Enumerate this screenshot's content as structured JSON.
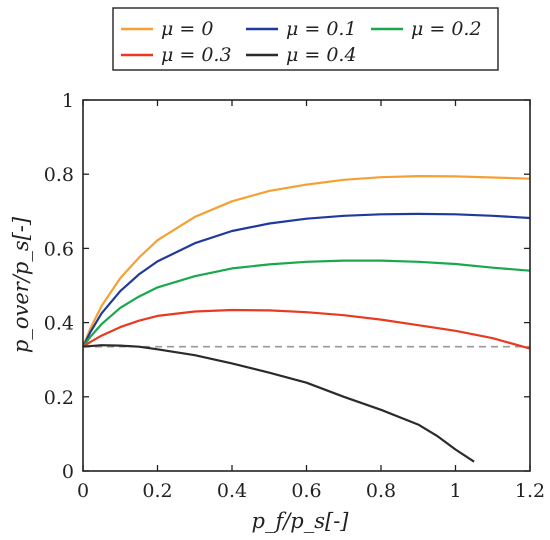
{
  "chart_data": {
    "type": "line",
    "xlabel": "p_f/p_s[-]",
    "ylabel": "p_over/p_s[-]",
    "xlim": [
      0,
      1.2
    ],
    "ylim": [
      0,
      1
    ],
    "x_ticks": [
      "0",
      "0.2",
      "0.4",
      "0.6",
      "0.8",
      "1",
      "1.2"
    ],
    "y_ticks": [
      "0",
      "0.2",
      "0.4",
      "0.6",
      "0.8",
      "1"
    ],
    "grid": false,
    "legend": "top-outside",
    "series": [
      {
        "name": "μ = 0",
        "color": "#f5a033",
        "points": [
          [
            0,
            0.335
          ],
          [
            0.02,
            0.385
          ],
          [
            0.05,
            0.445
          ],
          [
            0.1,
            0.52
          ],
          [
            0.15,
            0.575
          ],
          [
            0.2,
            0.622
          ],
          [
            0.3,
            0.685
          ],
          [
            0.4,
            0.727
          ],
          [
            0.5,
            0.755
          ],
          [
            0.6,
            0.772
          ],
          [
            0.7,
            0.785
          ],
          [
            0.8,
            0.792
          ],
          [
            0.9,
            0.795
          ],
          [
            1.0,
            0.794
          ],
          [
            1.1,
            0.791
          ],
          [
            1.2,
            0.788
          ]
        ]
      },
      {
        "name": "μ = 0.1",
        "color": "#1f3a9c",
        "points": [
          [
            0,
            0.335
          ],
          [
            0.02,
            0.375
          ],
          [
            0.05,
            0.425
          ],
          [
            0.1,
            0.485
          ],
          [
            0.15,
            0.53
          ],
          [
            0.2,
            0.565
          ],
          [
            0.3,
            0.614
          ],
          [
            0.4,
            0.647
          ],
          [
            0.5,
            0.667
          ],
          [
            0.6,
            0.68
          ],
          [
            0.7,
            0.688
          ],
          [
            0.8,
            0.692
          ],
          [
            0.9,
            0.693
          ],
          [
            1.0,
            0.692
          ],
          [
            1.1,
            0.688
          ],
          [
            1.2,
            0.682
          ]
        ]
      },
      {
        "name": "μ = 0.2",
        "color": "#1aa84d",
        "points": [
          [
            0,
            0.335
          ],
          [
            0.02,
            0.362
          ],
          [
            0.05,
            0.396
          ],
          [
            0.1,
            0.44
          ],
          [
            0.15,
            0.47
          ],
          [
            0.2,
            0.495
          ],
          [
            0.3,
            0.525
          ],
          [
            0.4,
            0.546
          ],
          [
            0.5,
            0.557
          ],
          [
            0.6,
            0.564
          ],
          [
            0.7,
            0.567
          ],
          [
            0.8,
            0.567
          ],
          [
            0.9,
            0.564
          ],
          [
            1.0,
            0.558
          ],
          [
            1.1,
            0.548
          ],
          [
            1.2,
            0.54
          ]
        ]
      },
      {
        "name": "μ = 0.3",
        "color": "#e83a1f",
        "points": [
          [
            0,
            0.335
          ],
          [
            0.02,
            0.348
          ],
          [
            0.05,
            0.365
          ],
          [
            0.1,
            0.388
          ],
          [
            0.15,
            0.405
          ],
          [
            0.2,
            0.418
          ],
          [
            0.3,
            0.43
          ],
          [
            0.4,
            0.434
          ],
          [
            0.5,
            0.433
          ],
          [
            0.6,
            0.428
          ],
          [
            0.7,
            0.42
          ],
          [
            0.8,
            0.408
          ],
          [
            0.9,
            0.393
          ],
          [
            1.0,
            0.378
          ],
          [
            1.1,
            0.358
          ],
          [
            1.2,
            0.33
          ]
        ]
      },
      {
        "name": "μ = 0.4",
        "color": "#2b2b2b",
        "points": [
          [
            0,
            0.335
          ],
          [
            0.05,
            0.339
          ],
          [
            0.1,
            0.338
          ],
          [
            0.15,
            0.335
          ],
          [
            0.2,
            0.328
          ],
          [
            0.3,
            0.312
          ],
          [
            0.4,
            0.29
          ],
          [
            0.5,
            0.265
          ],
          [
            0.6,
            0.238
          ],
          [
            0.7,
            0.2
          ],
          [
            0.8,
            0.165
          ],
          [
            0.9,
            0.125
          ],
          [
            0.95,
            0.095
          ],
          [
            1.0,
            0.058
          ],
          [
            1.05,
            0.025
          ]
        ]
      }
    ],
    "reference_line": {
      "y": 0.335,
      "style": "dashed",
      "color": "#999999"
    }
  }
}
